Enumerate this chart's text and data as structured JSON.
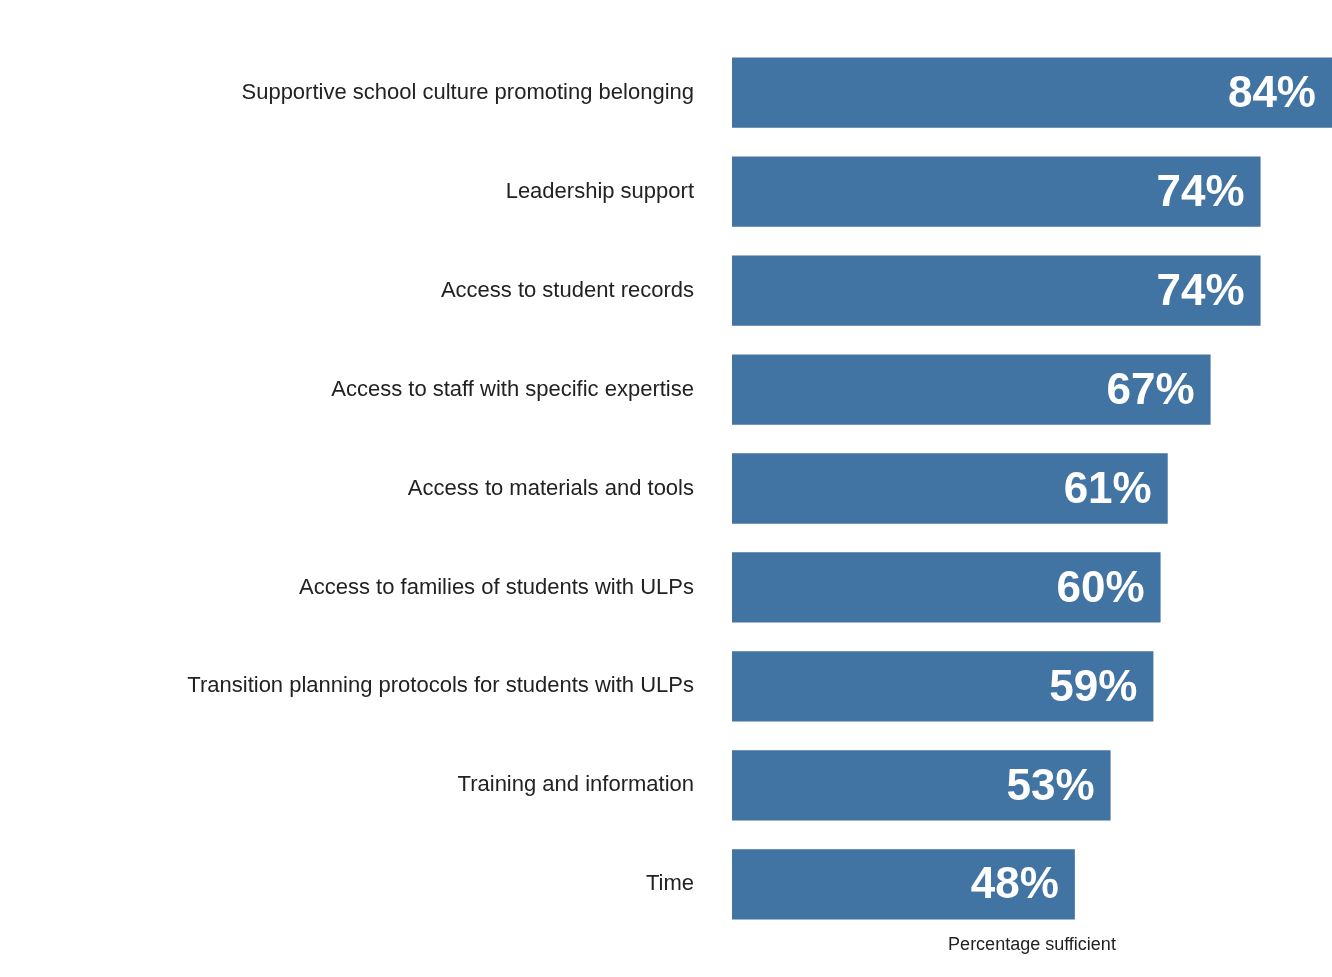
{
  "chart_data": {
    "type": "bar",
    "orientation": "horizontal",
    "xlabel": "Percentage sufficient",
    "categories": [
      "Supportive school culture promoting belonging",
      "Leadership support",
      "Access to student records",
      "Access to staff with specific expertise",
      "Access to materials and tools",
      "Access to families of students with ULPs",
      "Transition planning protocols for students with ULPs",
      "Training and information",
      "Time"
    ],
    "values": [
      84,
      74,
      74,
      67,
      61,
      60,
      59,
      53,
      48
    ],
    "value_labels": [
      "84%",
      "74%",
      "74%",
      "67%",
      "61%",
      "60%",
      "59%",
      "53%",
      "48%"
    ],
    "color": "#4173a3",
    "xlim": [
      0,
      84
    ],
    "grid": false,
    "legend": false,
    "tick_labels": "y"
  }
}
